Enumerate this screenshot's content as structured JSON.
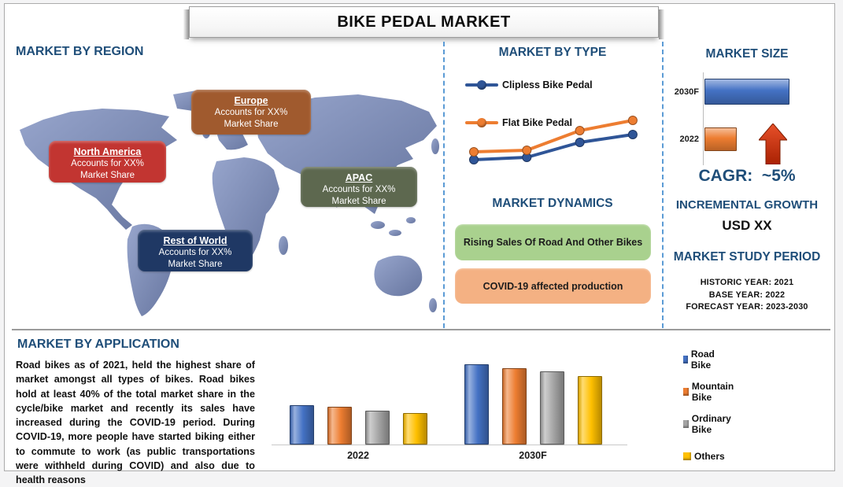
{
  "title": "BIKE PEDAL MARKET",
  "theme": {
    "heading_color": "#1F4E79",
    "divider_color": "#5B9BD5",
    "map_fill_light": "#97A5CC",
    "map_fill_dark": "#66759F",
    "arrow_color": "#C33A10"
  },
  "region": {
    "heading": "MARKET BY REGION",
    "callouts": [
      {
        "name": "Europe",
        "line1": "Accounts for XX%",
        "line2": "Market Share",
        "color": "#A05A2E"
      },
      {
        "name": "North America",
        "line1": "Accounts for XX%",
        "line2": "Market Share",
        "color": "#C23531"
      },
      {
        "name": "APAC",
        "line1": "Accounts for XX%",
        "line2": "Market Share",
        "color": "#5D684F"
      },
      {
        "name": "Rest of World",
        "line1": "Accounts for XX%",
        "line2": "Market Share",
        "color": "#1F3864"
      }
    ]
  },
  "type_section": {
    "heading": "MARKET BY TYPE"
  },
  "dynamics": {
    "heading": "MARKET DYNAMICS",
    "items": [
      {
        "label": "Rising Sales Of Road And Other Bikes",
        "color": "#A9D18E"
      },
      {
        "label": "COVID-19 affected production",
        "color": "#F4B183"
      }
    ]
  },
  "market_size": {
    "heading": "MARKET SIZE",
    "cagr": "CAGR:  ~5%"
  },
  "growth": {
    "heading": "INCREMENTAL GROWTH",
    "value": "USD XX"
  },
  "study_period": {
    "heading": "MARKET STUDY PERIOD",
    "lines": [
      "HISTORIC YEAR: 2021",
      "BASE YEAR: 2022",
      "FORECAST YEAR: 2023-2030"
    ]
  },
  "application": {
    "heading": "MARKET BY APPLICATION",
    "paragraph": "Road bikes as of 2021, held the highest share of market amongst all types of bikes. Road bikes hold at least 40% of the total market share in the cycle/bike market and recently its sales have increased during the COVID-19 period. During COVID-19, more people have started biking either to commute to work (as public transportations were withheld during COVID) and also due to health reasons"
  },
  "chart_data": [
    {
      "id": "market_by_type",
      "type": "line",
      "title": "MARKET BY TYPE",
      "x": [
        1,
        2,
        3,
        4
      ],
      "series": [
        {
          "name": "Clipless Bike Pedal",
          "color": "#2F5597",
          "values": [
            2.7,
            3.0,
            4.9,
            5.9
          ]
        },
        {
          "name": "Flat Bike Pedal",
          "color": "#ED7D31",
          "values": [
            3.7,
            3.9,
            6.4,
            7.7
          ]
        }
      ],
      "axes_visible": false,
      "legend_position": "upper-left",
      "note": "values are relative units (no axis labels shown); both series rise left to right, Flat above Clipless"
    },
    {
      "id": "market_size",
      "type": "bar",
      "orientation": "horizontal",
      "title": "MARKET SIZE",
      "categories": [
        "2030F",
        "2022"
      ],
      "values": [
        108,
        41
      ],
      "colors": [
        "#4472C4",
        "#ED7D31"
      ],
      "note": "relative bar lengths; 2030F much larger than 2022, red up-arrow annotation"
    },
    {
      "id": "market_by_application",
      "type": "bar",
      "categories": [
        "2022",
        "2030F"
      ],
      "series": [
        {
          "name": "Road Bike",
          "color": "#4472C4",
          "values": [
            50,
            102
          ]
        },
        {
          "name": "Mountain Bike",
          "color": "#ED7D31",
          "values": [
            48,
            97
          ]
        },
        {
          "name": "Ordinary Bike",
          "color": "#A5A5A5",
          "values": [
            43,
            93
          ]
        },
        {
          "name": "Others",
          "color": "#FFC000",
          "values": [
            40,
            87
          ]
        }
      ],
      "legend_position": "right",
      "note": "relative heights in px; no y-axis shown"
    }
  ]
}
